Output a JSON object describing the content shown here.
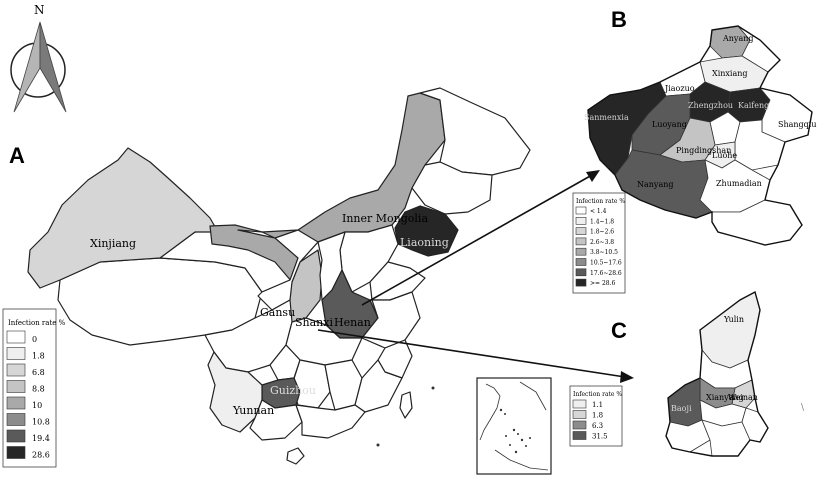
{
  "north_label": "N",
  "panels": {
    "a": "A",
    "b": "B",
    "c": "C"
  },
  "colors": {
    "c0": "#ffffff",
    "c1": "#efefef",
    "c2": "#d6d6d6",
    "c3": "#c4c4c4",
    "c4": "#a9a9a9",
    "c5": "#8c8c8c",
    "c6": "#5a5a5a",
    "c7": "#262626"
  },
  "legend_a": {
    "title": "Infection rate %",
    "items": [
      {
        "label": "0",
        "color": "#ffffff"
      },
      {
        "label": "1.8",
        "color": "#efefef"
      },
      {
        "label": "6.8",
        "color": "#d6d6d6"
      },
      {
        "label": "8.8",
        "color": "#c4c4c4"
      },
      {
        "label": "10",
        "color": "#a9a9a9"
      },
      {
        "label": "10.8",
        "color": "#8c8c8c"
      },
      {
        "label": "19.4",
        "color": "#5a5a5a"
      },
      {
        "label": "28.6",
        "color": "#262626"
      }
    ]
  },
  "legend_b": {
    "title": "Infection rate %",
    "items": [
      {
        "label": "< 1.4",
        "color": "#ffffff"
      },
      {
        "label": "1.4~1.8",
        "color": "#efefef"
      },
      {
        "label": "1.8~2.6",
        "color": "#d6d6d6"
      },
      {
        "label": "2.6~3.8",
        "color": "#c4c4c4"
      },
      {
        "label": "3.8~10.5",
        "color": "#a9a9a9"
      },
      {
        "label": "10.5~17.6",
        "color": "#8c8c8c"
      },
      {
        "label": "17.6~28.6",
        "color": "#5a5a5a"
      },
      {
        "label": ">= 28.6",
        "color": "#262626"
      }
    ]
  },
  "legend_c": {
    "title": "Infection rate %",
    "items": [
      {
        "label": "1.1",
        "color": "#efefef"
      },
      {
        "label": "1.8",
        "color": "#d6d6d6"
      },
      {
        "label": "6.3",
        "color": "#8c8c8c"
      },
      {
        "label": "31.5",
        "color": "#5a5a5a"
      }
    ]
  },
  "china_labels": {
    "xinjiang": "Xinjiang",
    "inner_mongolia": "Inner Mongolia",
    "liaoning": "Liaoning",
    "gansu": "Gansu",
    "shanxi": "Shanxi",
    "henan": "Henan",
    "guizhou": "Guizhou",
    "yunnan": "Yunnan"
  },
  "henan_labels": {
    "anyang": "Anyang",
    "xinxiang": "Xinxiang",
    "jiaozuo": "Jiaozuo",
    "sanmenxia": "Sanmenxia",
    "zhengzhou": "Zhengzhou",
    "kaifeng": "Kaifeng",
    "luoyang": "Luoyang",
    "shangqiu": "Shangqiu",
    "pingdingshan": "Pingdingshan",
    "luohe": "Luohe",
    "nanyang": "Nanyang",
    "zhumadian": "Zhumadian"
  },
  "shaanxi_labels": {
    "yulin": "Yulin",
    "xianyang": "Xianyang",
    "weinan": "Weinan",
    "baoji": "Baoji"
  },
  "scale_mark": "\\"
}
